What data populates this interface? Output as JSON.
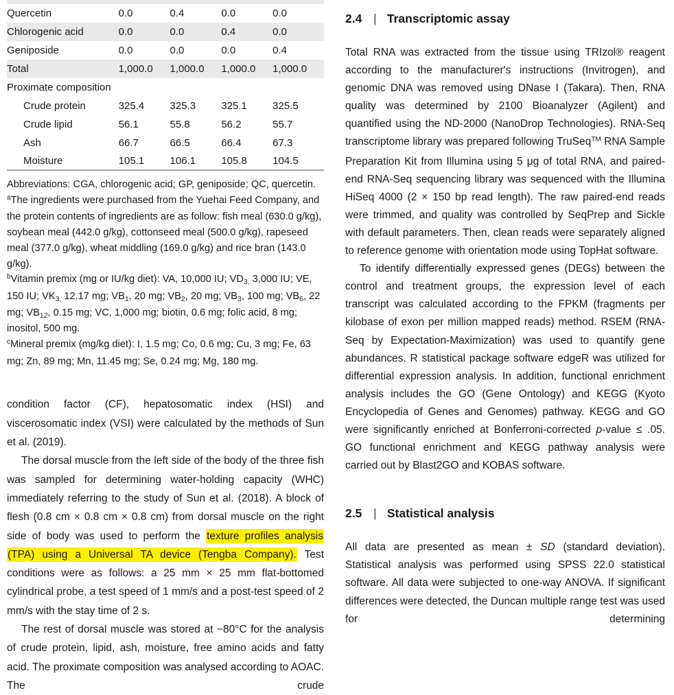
{
  "colors": {
    "highlight": "#fdee00",
    "stripe": "#e9e9e9",
    "text": "#1a1a1a",
    "rule": "#a8a8a8"
  },
  "table": {
    "rows": [
      {
        "label": "Quercetin",
        "values": [
          "0.0",
          "0.4",
          "0.0",
          "0.0"
        ],
        "striped": false,
        "indent": false,
        "section": false
      },
      {
        "label": "Chlorogenic acid",
        "values": [
          "0.0",
          "0.0",
          "0.4",
          "0.0"
        ],
        "striped": true,
        "indent": false,
        "section": false
      },
      {
        "label": "Geniposide",
        "values": [
          "0.0",
          "0.0",
          "0.0",
          "0.4"
        ],
        "striped": false,
        "indent": false,
        "section": false
      },
      {
        "label": "Total",
        "values": [
          "1,000.0",
          "1,000.0",
          "1,000.0",
          "1,000.0"
        ],
        "striped": true,
        "indent": false,
        "section": false
      },
      {
        "label": "Proximate composition",
        "values": [
          "",
          "",
          "",
          ""
        ],
        "striped": false,
        "indent": false,
        "section": true
      },
      {
        "label": "Crude protein",
        "values": [
          "325.4",
          "325.3",
          "325.1",
          "325.5"
        ],
        "striped": false,
        "indent": true,
        "section": false
      },
      {
        "label": "Crude lipid",
        "values": [
          "56.1",
          "55.8",
          "56.2",
          "55.7"
        ],
        "striped": false,
        "indent": true,
        "section": false
      },
      {
        "label": "Ash",
        "values": [
          "66.7",
          "66.5",
          "66.4",
          "67.3"
        ],
        "striped": false,
        "indent": true,
        "section": false
      },
      {
        "label": "Moisture",
        "values": [
          "105.1",
          "106.1",
          "105.8",
          "104.5"
        ],
        "striped": false,
        "indent": true,
        "section": false
      }
    ],
    "footnotes": [
      [
        {
          "t": "Abbreviations: CGA, chlorogenic acid; GP, geniposide; QC, quercetin."
        }
      ],
      [
        {
          "t": "a",
          "s": "sup"
        },
        {
          "t": "The ingredients were purchased from the Yuehai Feed Company, and the protein contents of ingredients are as follow: fish meal (630.0 g/kg), soybean meal (442.0 g/kg), cottonseed meal (500.0 g/kg), rapeseed meal (377.0 g/kg), wheat middling (169.0 g/kg) and rice bran (143.0 g/kg)."
        }
      ],
      [
        {
          "t": "b",
          "s": "sup"
        },
        {
          "t": "Vitamin premix (mg or IU/kg diet): VA, 10,000 IU; VD"
        },
        {
          "t": "3,",
          "s": "sub"
        },
        {
          "t": " 3,000 IU; VE, 150 IU; VK"
        },
        {
          "t": "3,",
          "s": "sub"
        },
        {
          "t": " 12.17 mg; VB"
        },
        {
          "t": "1",
          "s": "sub"
        },
        {
          "t": ", 20 mg; VB"
        },
        {
          "t": "2",
          "s": "sub"
        },
        {
          "t": ", 20 mg; VB"
        },
        {
          "t": "3",
          "s": "sub"
        },
        {
          "t": ", 100 mg; VB"
        },
        {
          "t": "6",
          "s": "sub"
        },
        {
          "t": ", 22 mg; VB"
        },
        {
          "t": "12",
          "s": "sub"
        },
        {
          "t": ", 0.15 mg; VC, 1,000 mg; biotin, 0.6 mg; folic acid, 8 mg; inositol, 500 mg."
        }
      ],
      [
        {
          "t": "c",
          "s": "sup"
        },
        {
          "t": "Mineral premix (mg/kg diet): I, 1.5 mg; Co, 0.6 mg; Cu, 3 mg; Fe, 63 mg; Zn, 89 mg; Mn, 11.45 mg; Se, 0.24 mg; Mg, 180 mg."
        }
      ]
    ]
  },
  "left_column": {
    "paragraphs": [
      {
        "indent": false,
        "cont": false,
        "segments": [
          {
            "t": "condition factor (CF), hepatosomatic index (HSI) and viscerosomatic index (VSI) were calculated by the methods of Sun et al. (2019)."
          }
        ]
      },
      {
        "indent": true,
        "cont": false,
        "segments": [
          {
            "t": "The dorsal muscle from the left side of the body of the three fish was sampled for determining water-holding capacity (WHC) immediately referring to the study of Sun et al. (2018). A block of flesh (0.8 cm × 0.8 cm × 0.8 cm) from dorsal muscle on the right side of body was used to perform the "
          },
          {
            "t": "texture profiles analysis (TPA) using a Universal TA device (Tengba Company).",
            "s": "hl"
          },
          {
            "t": " Test conditions were as follows: a 25 mm × 25 mm flat-bottomed cylindrical probe, a test speed of 1 mm/s and a post-test speed of 2 mm/s with the stay time of 2 s."
          }
        ]
      },
      {
        "indent": true,
        "cont": true,
        "segments": [
          {
            "t": "The rest of dorsal muscle was stored at −80°C for the analysis of crude protein, lipid, ash, moisture, free amino acids and fatty acid. The proximate composition was analysed according to AOAC. The crude"
          }
        ]
      }
    ]
  },
  "right_column": {
    "sections": [
      {
        "number": "2.4",
        "divider": "|",
        "title": "Transcriptomic assay",
        "paragraphs": [
          {
            "indent": false,
            "cont": false,
            "segments": [
              {
                "t": "Total RNA was extracted from the tissue using TRIzol® reagent according to the manufacturer's instructions (Invitrogen), and genomic DNA was removed using DNase I (Takara). Then, RNA quality was determined by 2100 Bioanalyzer (Agilent) and quantified using the ND-2000 (NanoDrop Technologies). RNA-Seq transcriptome library was prepared following TruSeq"
              },
              {
                "t": "TM",
                "s": "sup"
              },
              {
                "t": " RNA Sample Preparation Kit from Illumina using 5 μg of total RNA, and paired-end RNA-Seq sequencing library was sequenced with the Illumina HiSeq 4000 (2 × 150 bp read length). The raw paired-end reads were trimmed, and quality was controlled by SeqPrep and Sickle with default parameters. Then, clean reads were separately aligned to reference genome with orientation mode using TopHat software."
              }
            ]
          },
          {
            "indent": true,
            "cont": false,
            "segments": [
              {
                "t": "To identify differentially expressed genes (DEGs) between the control and treatment groups, the expression level of each transcript was calculated according to the FPKM (fragments per kilobase of exon per million mapped reads) method. RSEM (RNA-Seq by Expectation-Maximization) was used to quantify gene abundances. R statistical package software edgeR was utilized for differential expression analysis. In addition, functional enrichment analysis includes the GO (Gene Ontology) and KEGG (Kyoto Encyclopedia of Genes and Genomes) pathway. KEGG and GO were significantly enriched at Bonferroni-corrected "
              },
              {
                "t": "p",
                "s": "i"
              },
              {
                "t": "-value ≤ .05. GO functional enrichment and KEGG pathway analysis were carried out by Blast2GO and KOBAS software."
              }
            ]
          }
        ]
      },
      {
        "number": "2.5",
        "divider": "|",
        "title": "Statistical analysis",
        "paragraphs": [
          {
            "indent": false,
            "cont": true,
            "segments": [
              {
                "t": "All data are presented as mean ± "
              },
              {
                "t": "SD",
                "s": "i"
              },
              {
                "t": " (standard deviation). Statistical analysis was performed using SPSS 22.0 statistical software. All data were subjected to one-way ANOVA. If significant differences were detected, the Duncan multiple range test was used for determining"
              }
            ]
          }
        ]
      }
    ]
  }
}
